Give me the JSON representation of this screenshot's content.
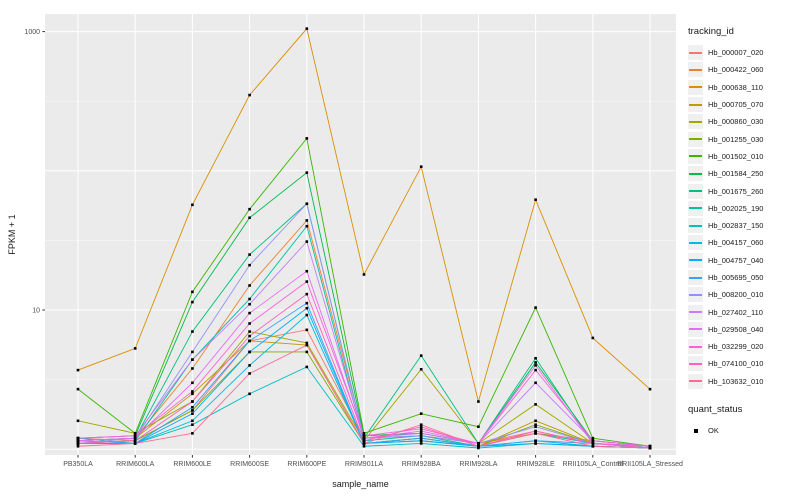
{
  "figure": {
    "bg": "#FFFFFF",
    "panel_bg": "#EBEBEB",
    "grid_major_color": "#FFFFFF",
    "grid_minor_color": "#F7F7F7",
    "tick_color": "#333333",
    "axis_text_color": "#4D4D4D",
    "axis_title_color": "#1A1A1A",
    "point_color": "#000000"
  },
  "chart_data": {
    "type": "line",
    "title": "",
    "xlabel": "sample_name",
    "ylabel": "FPKM + 1",
    "y_scale": "log10",
    "ylim": [
      0.91,
      1340
    ],
    "grid": true,
    "legend_position": "right",
    "y_ticks": [
      {
        "label": "1000",
        "value": 1000
      },
      {
        "label": "10",
        "value": 10
      }
    ],
    "y_grid_major": [
      1,
      10,
      100,
      1000
    ],
    "y_grid_minor": [
      3.162,
      31.62,
      316.2
    ],
    "categories": [
      "PB350LA",
      "RRIM600LA",
      "RRIM600LE",
      "RRIM600SE",
      "RRIM600PE",
      "RRIM901LA",
      "RRIM928BA",
      "RRIM928LA",
      "RRIM928LE",
      "RRII105LA_Control",
      "RRII105LA_Stressed"
    ],
    "legend_title": "tracking_id",
    "series": [
      {
        "name": "Hb_000007_020",
        "color": "#F8766D",
        "values": [
          1.2,
          1.15,
          1.9,
          6.0,
          7.2,
          1.2,
          1.25,
          1.1,
          1.35,
          1.1,
          1.05
        ]
      },
      {
        "name": "Hb_000422_060",
        "color": "#EA8331",
        "values": [
          1.15,
          1.2,
          3.8,
          15.0,
          44.0,
          1.25,
          1.3,
          1.1,
          1.3,
          1.15,
          1.05
        ]
      },
      {
        "name": "Hb_000638_110",
        "color": "#D89000",
        "values": [
          3.7,
          5.3,
          57.0,
          350.0,
          1050.0,
          18.0,
          107.0,
          2.2,
          62.0,
          6.3,
          2.7
        ]
      },
      {
        "name": "Hb_000705_070",
        "color": "#C09B00",
        "values": [
          1.1,
          1.2,
          2.5,
          6.0,
          5.6,
          1.1,
          1.2,
          1.05,
          1.6,
          1.1,
          1.05
        ]
      },
      {
        "name": "Hb_000860_030",
        "color": "#A3A500",
        "values": [
          1.6,
          1.3,
          2.2,
          7.0,
          5.8,
          1.15,
          3.75,
          1.1,
          2.1,
          1.1,
          1.05
        ]
      },
      {
        "name": "Hb_001255_030",
        "color": "#7CAE00",
        "values": [
          1.1,
          1.15,
          1.9,
          5.0,
          5.0,
          1.1,
          1.2,
          1.05,
          1.5,
          1.1,
          1.02
        ]
      },
      {
        "name": "Hb_001502_010",
        "color": "#39B600",
        "values": [
          2.7,
          1.3,
          13.5,
          53.0,
          171.0,
          1.3,
          1.8,
          1.45,
          10.4,
          1.2,
          1.05
        ]
      },
      {
        "name": "Hb_001584_250",
        "color": "#00BB4E",
        "values": [
          1.2,
          1.25,
          11.4,
          46.0,
          97.0,
          1.25,
          1.3,
          1.1,
          4.2,
          1.15,
          1.05
        ]
      },
      {
        "name": "Hb_001675_260",
        "color": "#00BF7D",
        "values": [
          1.15,
          1.2,
          7.0,
          25.0,
          58.0,
          1.2,
          4.7,
          1.1,
          4.5,
          1.1,
          1.05
        ]
      },
      {
        "name": "Hb_002025_190",
        "color": "#00C1A3",
        "values": [
          1.1,
          1.15,
          4.4,
          12.0,
          40.0,
          1.15,
          1.25,
          1.05,
          1.3,
          1.1,
          1.02
        ]
      },
      {
        "name": "Hb_002837_150",
        "color": "#00BFC4",
        "values": [
          1.2,
          1.1,
          1.5,
          2.5,
          3.9,
          1.05,
          1.1,
          1.02,
          1.1,
          1.05,
          1.02
        ]
      },
      {
        "name": "Hb_004157_060",
        "color": "#00BAE0",
        "values": [
          1.1,
          1.1,
          1.6,
          4.0,
          9.2,
          1.1,
          1.15,
          1.05,
          1.15,
          1.05,
          1.02
        ]
      },
      {
        "name": "Hb_004757_040",
        "color": "#00B0F6",
        "values": [
          1.1,
          1.1,
          1.8,
          5.0,
          10.3,
          1.1,
          1.15,
          1.05,
          1.1,
          1.05,
          1.02
        ]
      },
      {
        "name": "Hb_005695_050",
        "color": "#35A2FF",
        "values": [
          1.15,
          1.1,
          2.0,
          6.0,
          11.2,
          1.1,
          1.2,
          1.05,
          1.15,
          1.1,
          1.02
        ]
      },
      {
        "name": "Hb_008200_010",
        "color": "#9590FF",
        "values": [
          1.1,
          1.2,
          5.0,
          21.0,
          58.0,
          1.2,
          1.25,
          1.1,
          1.45,
          1.1,
          1.05
        ]
      },
      {
        "name": "Hb_027402_110",
        "color": "#C77CFF",
        "values": [
          1.2,
          1.25,
          4.4,
          11.0,
          31.0,
          1.2,
          1.3,
          1.1,
          3.0,
          1.15,
          1.05
        ]
      },
      {
        "name": "Hb_029508_040",
        "color": "#E76BF3",
        "values": [
          1.15,
          1.2,
          3.0,
          9.5,
          19.0,
          1.2,
          1.35,
          1.1,
          4.0,
          1.1,
          1.05
        ]
      },
      {
        "name": "Hb_032299_020",
        "color": "#FA62DB",
        "values": [
          1.2,
          1.25,
          2.6,
          8.0,
          16.0,
          1.25,
          1.4,
          1.1,
          3.7,
          1.15,
          1.05
        ]
      },
      {
        "name": "Hb_074100_010",
        "color": "#FF62BC",
        "values": [
          1.1,
          1.15,
          2.2,
          6.5,
          13.0,
          1.15,
          1.45,
          1.05,
          1.35,
          1.1,
          1.02
        ]
      },
      {
        "name": "Hb_103632_010",
        "color": "#FF6A98",
        "values": [
          1.05,
          1.1,
          1.3,
          3.5,
          5.6,
          1.1,
          1.5,
          1.05,
          1.3,
          1.05,
          1.02
        ]
      }
    ],
    "legend2_title": "quant_status",
    "legend2_items": [
      {
        "label": "OK",
        "marker": "square",
        "color": "#000000"
      }
    ]
  }
}
